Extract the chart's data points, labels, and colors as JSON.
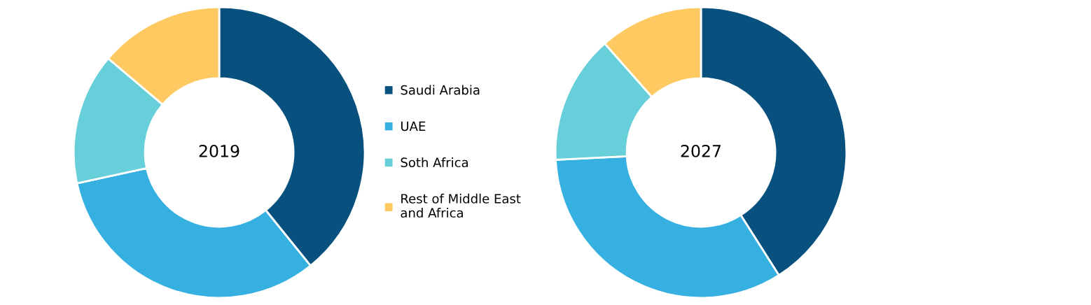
{
  "chart_data": [
    {
      "type": "donut",
      "title": "2019",
      "categories": [
        "Saudi Arabia",
        "UAE",
        "Soth Africa",
        "Rest of Middle East and Africa"
      ],
      "values": [
        39.2,
        32.4,
        14.6,
        13.8
      ],
      "colors": [
        "#08517e",
        "#35b0e1",
        "#66cfd9",
        "#fdc960"
      ],
      "legend": "right"
    },
    {
      "type": "donut",
      "title": "2027",
      "categories": [
        null,
        null,
        null,
        null
      ],
      "values": [
        41.0,
        33.2,
        14.3,
        11.5
      ],
      "colors": [
        "#08517e",
        "#35b0e1",
        "#66cfd9",
        "#fdc960"
      ]
    }
  ]
}
